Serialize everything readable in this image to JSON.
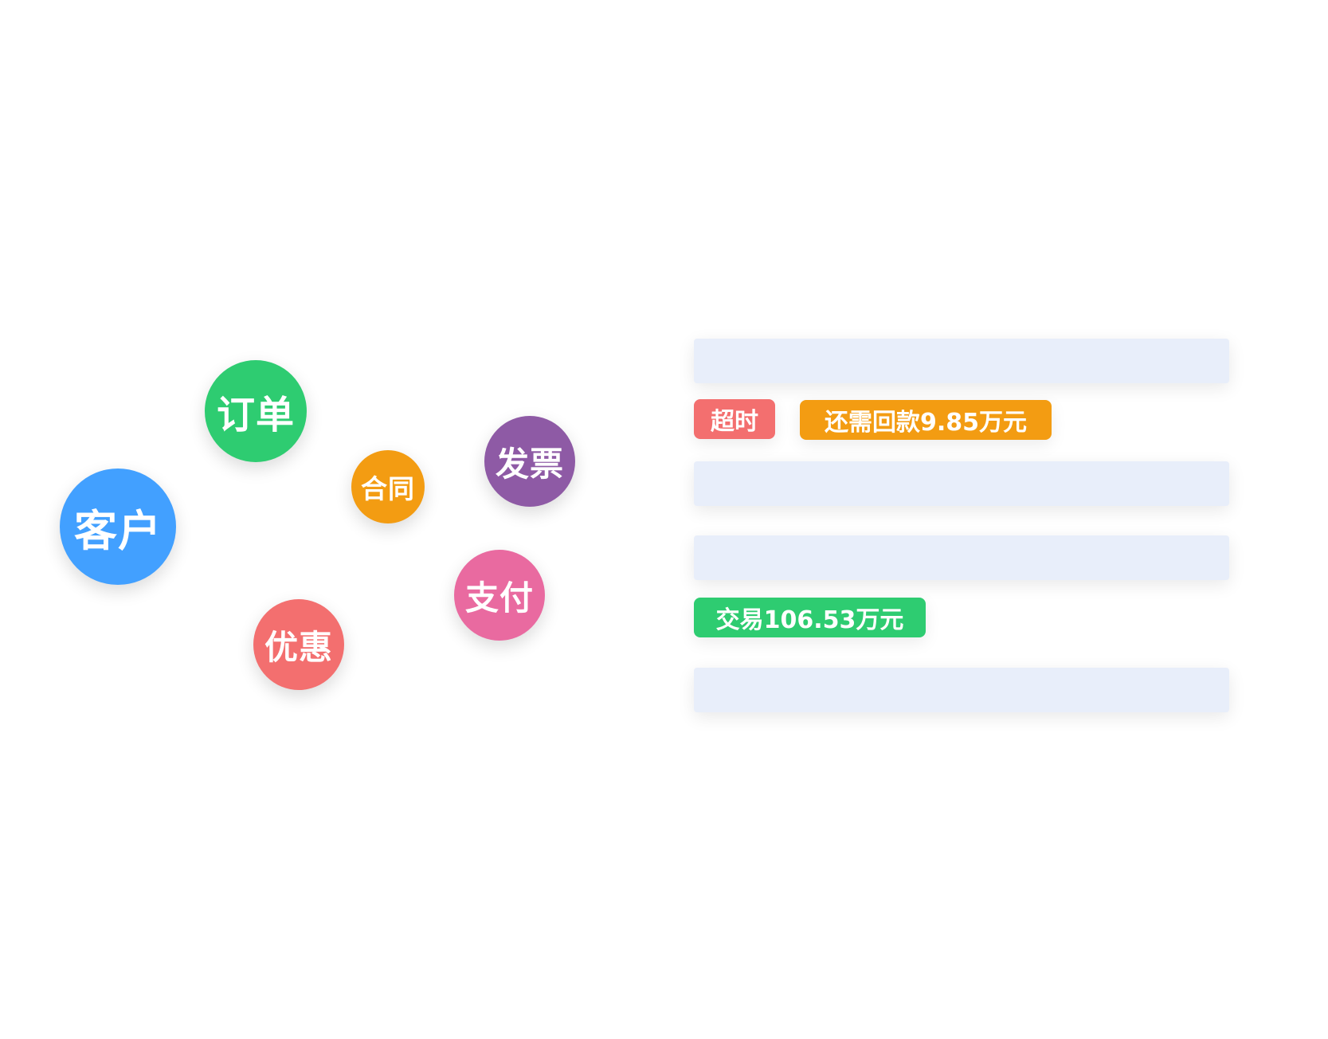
{
  "bubbles": [
    {
      "label": "客户",
      "color": "#42a0ff"
    },
    {
      "label": "订单",
      "color": "#2ecc71"
    },
    {
      "label": "合同",
      "color": "#f39c12"
    },
    {
      "label": "发票",
      "color": "#8e5aa5"
    },
    {
      "label": "支付",
      "color": "#e96aa0"
    },
    {
      "label": "优惠",
      "color": "#f36f6f"
    }
  ],
  "tags": {
    "overdue": {
      "label": "超时",
      "color": "#f36f6f"
    },
    "remaining": {
      "label": "还需回款9.85万元",
      "color": "#f39c12"
    },
    "transaction": {
      "label": "交易106.53万元",
      "color": "#2ecc71"
    }
  },
  "placeholder_bar_color": "#e8eefa"
}
